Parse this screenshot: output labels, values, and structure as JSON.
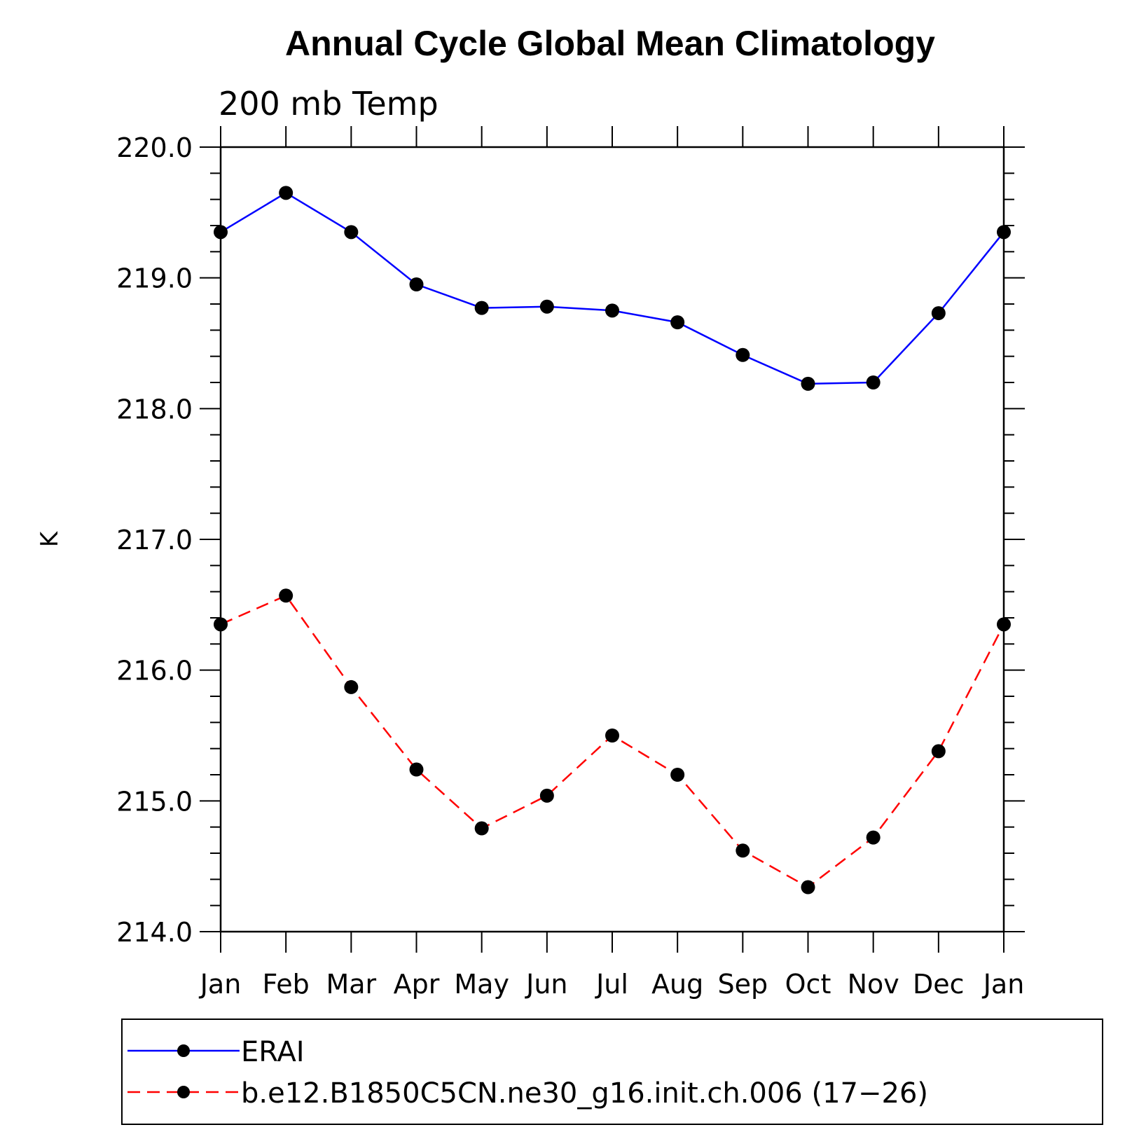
{
  "chart_data": {
    "type": "line",
    "title": "Annual Cycle Global Mean Climatology",
    "subtitle": "200 mb Temp",
    "xlabel": "",
    "ylabel": "K",
    "categories": [
      "Jan",
      "Feb",
      "Mar",
      "Apr",
      "May",
      "Jun",
      "Jul",
      "Aug",
      "Sep",
      "Oct",
      "Nov",
      "Dec",
      "Jan"
    ],
    "ylim": [
      214.0,
      220.0
    ],
    "yticks": [
      "214.0",
      "215.0",
      "216.0",
      "217.0",
      "218.0",
      "219.0",
      "220.0"
    ],
    "grid": false,
    "legend_position": "bottom",
    "series": [
      {
        "name": "ERAI",
        "color": "#0000ff",
        "dashed": false,
        "values": [
          219.35,
          219.65,
          219.35,
          218.95,
          218.77,
          218.78,
          218.75,
          218.66,
          218.41,
          218.19,
          218.2,
          218.73,
          219.35
        ]
      },
      {
        "name": "b.e12.B1850C5CN.ne30_g16.init.ch.006 (17−26)",
        "color": "#ff0000",
        "dashed": true,
        "values": [
          216.35,
          216.57,
          215.87,
          215.24,
          214.79,
          215.04,
          215.5,
          215.2,
          214.62,
          214.34,
          214.72,
          215.38,
          216.35
        ]
      }
    ]
  }
}
